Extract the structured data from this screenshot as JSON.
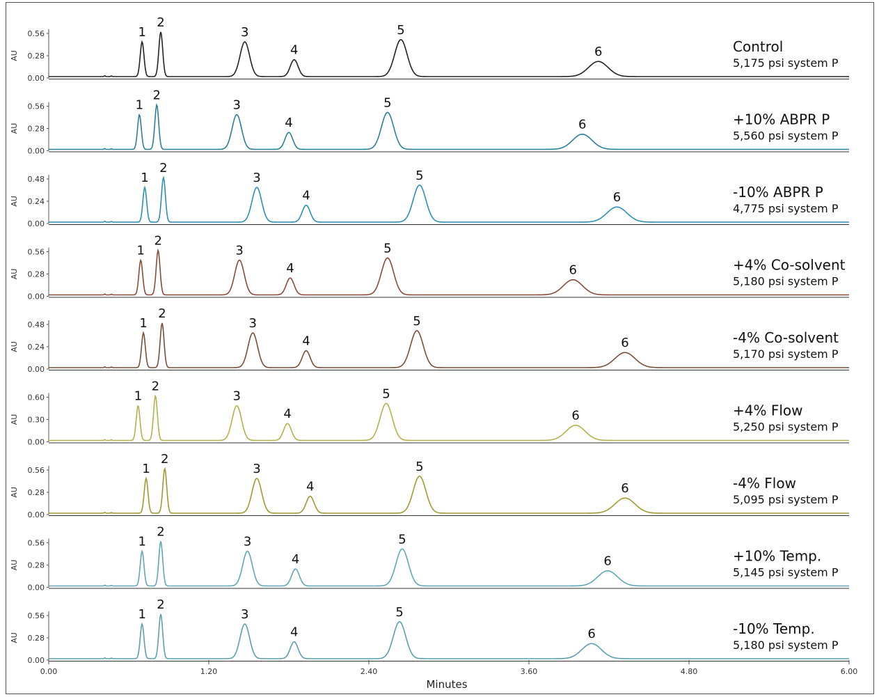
{
  "chart_data": {
    "type": "line",
    "title": "",
    "xlabel": "Minutes",
    "ylabel": "AU",
    "xlim": [
      0,
      6
    ],
    "x_ticks": [
      "0.00",
      "1.20",
      "2.40",
      "3.60",
      "4.80",
      "6.00"
    ],
    "peak_labels": [
      "1",
      "2",
      "3",
      "4",
      "5",
      "6"
    ],
    "peak_relative_heights": [
      0.78,
      1.0,
      0.78,
      0.38,
      0.83,
      0.34
    ],
    "peak_widths": [
      0.012,
      0.012,
      0.026,
      0.02,
      0.028,
      0.036
    ],
    "series": [
      {
        "name": "Control",
        "pressure": "5,175 psi system P",
        "color": "#222222",
        "y_ticks": [
          "0.56",
          "0.28",
          "0.00"
        ],
        "peaks_min": [
          0.7,
          0.84,
          1.47,
          1.84,
          2.64,
          4.12
        ]
      },
      {
        "name": "+10% ABPR P",
        "pressure": "5,560 psi system P",
        "color": "#2a7f9c",
        "y_ticks": [
          "0.56",
          "0.28",
          "0.00"
        ],
        "peaks_min": [
          0.68,
          0.81,
          1.41,
          1.8,
          2.54,
          4.0
        ]
      },
      {
        "name": "-10% ABPR P",
        "pressure": "4,775 psi system P",
        "color": "#2b8fb5",
        "y_ticks": [
          "0.48",
          "0.24",
          "0.00"
        ],
        "peaks_min": [
          0.72,
          0.86,
          1.56,
          1.93,
          2.78,
          4.26
        ]
      },
      {
        "name": "+4% Co-solvent",
        "pressure": "5,180 psi system P",
        "color": "#8a4a3a",
        "y_ticks": [
          "0.56",
          "0.28",
          "0.00"
        ],
        "peaks_min": [
          0.69,
          0.82,
          1.43,
          1.81,
          2.54,
          3.93
        ]
      },
      {
        "name": "-4% Co-solvent",
        "pressure": "5,170 psi system P",
        "color": "#7a4e36",
        "y_ticks": [
          "0.48",
          "0.24",
          "0.00"
        ],
        "peaks_min": [
          0.71,
          0.85,
          1.53,
          1.93,
          2.76,
          4.32
        ]
      },
      {
        "name": "+4% Flow",
        "pressure": "5,250 psi system P",
        "color": "#b5b04a",
        "y_ticks": [
          "0.60",
          "0.30",
          "0.00"
        ],
        "peaks_min": [
          0.67,
          0.8,
          1.41,
          1.79,
          2.53,
          3.95
        ]
      },
      {
        "name": "-4% Flow",
        "pressure": "5,095 psi system P",
        "color": "#a09a30",
        "y_ticks": [
          "0.56",
          "0.28",
          "0.00"
        ],
        "peaks_min": [
          0.73,
          0.87,
          1.56,
          1.96,
          2.78,
          4.32
        ]
      },
      {
        "name": "+10% Temp.",
        "pressure": "5,145 psi system P",
        "color": "#5fa7b7",
        "y_ticks": [
          "0.56",
          "0.28",
          "0.00"
        ],
        "peaks_min": [
          0.7,
          0.84,
          1.49,
          1.85,
          2.65,
          4.19
        ]
      },
      {
        "name": "-10% Temp.",
        "pressure": "5,180 psi system P",
        "color": "#5b9fb0",
        "y_ticks": [
          "0.56",
          "0.28",
          "0.00"
        ],
        "peaks_min": [
          0.7,
          0.84,
          1.47,
          1.84,
          2.63,
          4.07
        ]
      }
    ]
  }
}
